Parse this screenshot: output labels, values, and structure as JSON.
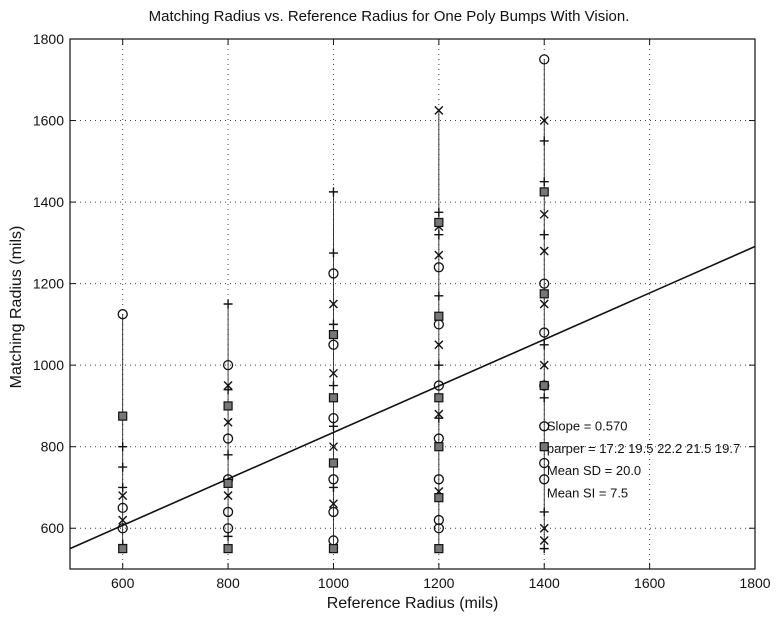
{
  "chart_data": {
    "type": "scatter",
    "title": "Matching Radius vs. Reference Radius for One Poly Bumps With Vision.",
    "xlabel": "Reference Radius (mils)",
    "ylabel": "Matching Radius (mils)",
    "xlim": [
      500,
      1800
    ],
    "ylim": [
      500,
      1800
    ],
    "xticks": [
      600,
      800,
      1000,
      1200,
      1400,
      1600,
      1800
    ],
    "yticks": [
      600,
      800,
      1000,
      1200,
      1400,
      1600,
      1800
    ],
    "grid": true,
    "grid_style": "dotted",
    "marker_color": "#111111",
    "series": [
      {
        "marker": "o",
        "points": [
          [
            600,
            1125
          ],
          [
            600,
            650
          ],
          [
            600,
            600
          ],
          [
            800,
            1000
          ],
          [
            800,
            820
          ],
          [
            800,
            720
          ],
          [
            800,
            640
          ],
          [
            800,
            600
          ],
          [
            1000,
            1225
          ],
          [
            1000,
            1050
          ],
          [
            1000,
            870
          ],
          [
            1000,
            720
          ],
          [
            1000,
            640
          ],
          [
            1000,
            570
          ],
          [
            1200,
            1240
          ],
          [
            1200,
            1100
          ],
          [
            1200,
            950
          ],
          [
            1200,
            820
          ],
          [
            1200,
            720
          ],
          [
            1200,
            620
          ],
          [
            1200,
            600
          ],
          [
            1400,
            1750
          ],
          [
            1400,
            1200
          ],
          [
            1400,
            1080
          ],
          [
            1400,
            950
          ],
          [
            1400,
            850
          ],
          [
            1400,
            760
          ],
          [
            1400,
            720
          ]
        ]
      },
      {
        "marker": "x",
        "points": [
          [
            600,
            680
          ],
          [
            600,
            620
          ],
          [
            800,
            950
          ],
          [
            800,
            860
          ],
          [
            800,
            680
          ],
          [
            1000,
            1150
          ],
          [
            1000,
            980
          ],
          [
            1000,
            800
          ],
          [
            1000,
            660
          ],
          [
            1200,
            1625
          ],
          [
            1200,
            1340
          ],
          [
            1200,
            1270
          ],
          [
            1200,
            1050
          ],
          [
            1200,
            880
          ],
          [
            1200,
            690
          ],
          [
            1400,
            1600
          ],
          [
            1400,
            1370
          ],
          [
            1400,
            1280
          ],
          [
            1400,
            1150
          ],
          [
            1400,
            1000
          ],
          [
            1400,
            600
          ],
          [
            1400,
            570
          ]
        ]
      },
      {
        "marker": "+",
        "points": [
          [
            600,
            800
          ],
          [
            600,
            750
          ],
          [
            600,
            700
          ],
          [
            600,
            560
          ],
          [
            800,
            1150
          ],
          [
            800,
            940
          ],
          [
            800,
            780
          ],
          [
            800,
            580
          ],
          [
            1000,
            1425
          ],
          [
            1000,
            1275
          ],
          [
            1000,
            1100
          ],
          [
            1000,
            950
          ],
          [
            1000,
            850
          ],
          [
            1000,
            700
          ],
          [
            1200,
            1375
          ],
          [
            1200,
            1320
          ],
          [
            1200,
            1170
          ],
          [
            1200,
            1000
          ],
          [
            1200,
            870
          ],
          [
            1200,
            550
          ],
          [
            1400,
            1550
          ],
          [
            1400,
            1450
          ],
          [
            1400,
            1320
          ],
          [
            1400,
            1050
          ],
          [
            1400,
            920
          ],
          [
            1400,
            800
          ],
          [
            1400,
            640
          ],
          [
            1400,
            550
          ]
        ]
      },
      {
        "marker": "square",
        "points": [
          [
            600,
            875
          ],
          [
            600,
            550
          ],
          [
            800,
            900
          ],
          [
            800,
            710
          ],
          [
            800,
            550
          ],
          [
            1000,
            1075
          ],
          [
            1000,
            920
          ],
          [
            1000,
            760
          ],
          [
            1000,
            550
          ],
          [
            1200,
            1350
          ],
          [
            1200,
            1120
          ],
          [
            1200,
            920
          ],
          [
            1200,
            800
          ],
          [
            1200,
            675
          ],
          [
            1200,
            550
          ],
          [
            1400,
            1425
          ],
          [
            1400,
            1175
          ],
          [
            1400,
            950
          ],
          [
            1400,
            800
          ]
        ]
      }
    ],
    "fit_line": {
      "slope": 0.57,
      "intercept": 265
    },
    "annotations": [
      {
        "text": "Slope = 0.570",
        "x": 1405,
        "y": 840
      },
      {
        "text": "parper = 17.2 19.5 22.2 21.5 19.7",
        "x": 1405,
        "y": 785
      },
      {
        "text": "Mean SD = 20.0",
        "x": 1405,
        "y": 730
      },
      {
        "text": "Mean SI = 7.5",
        "x": 1405,
        "y": 675
      }
    ]
  }
}
